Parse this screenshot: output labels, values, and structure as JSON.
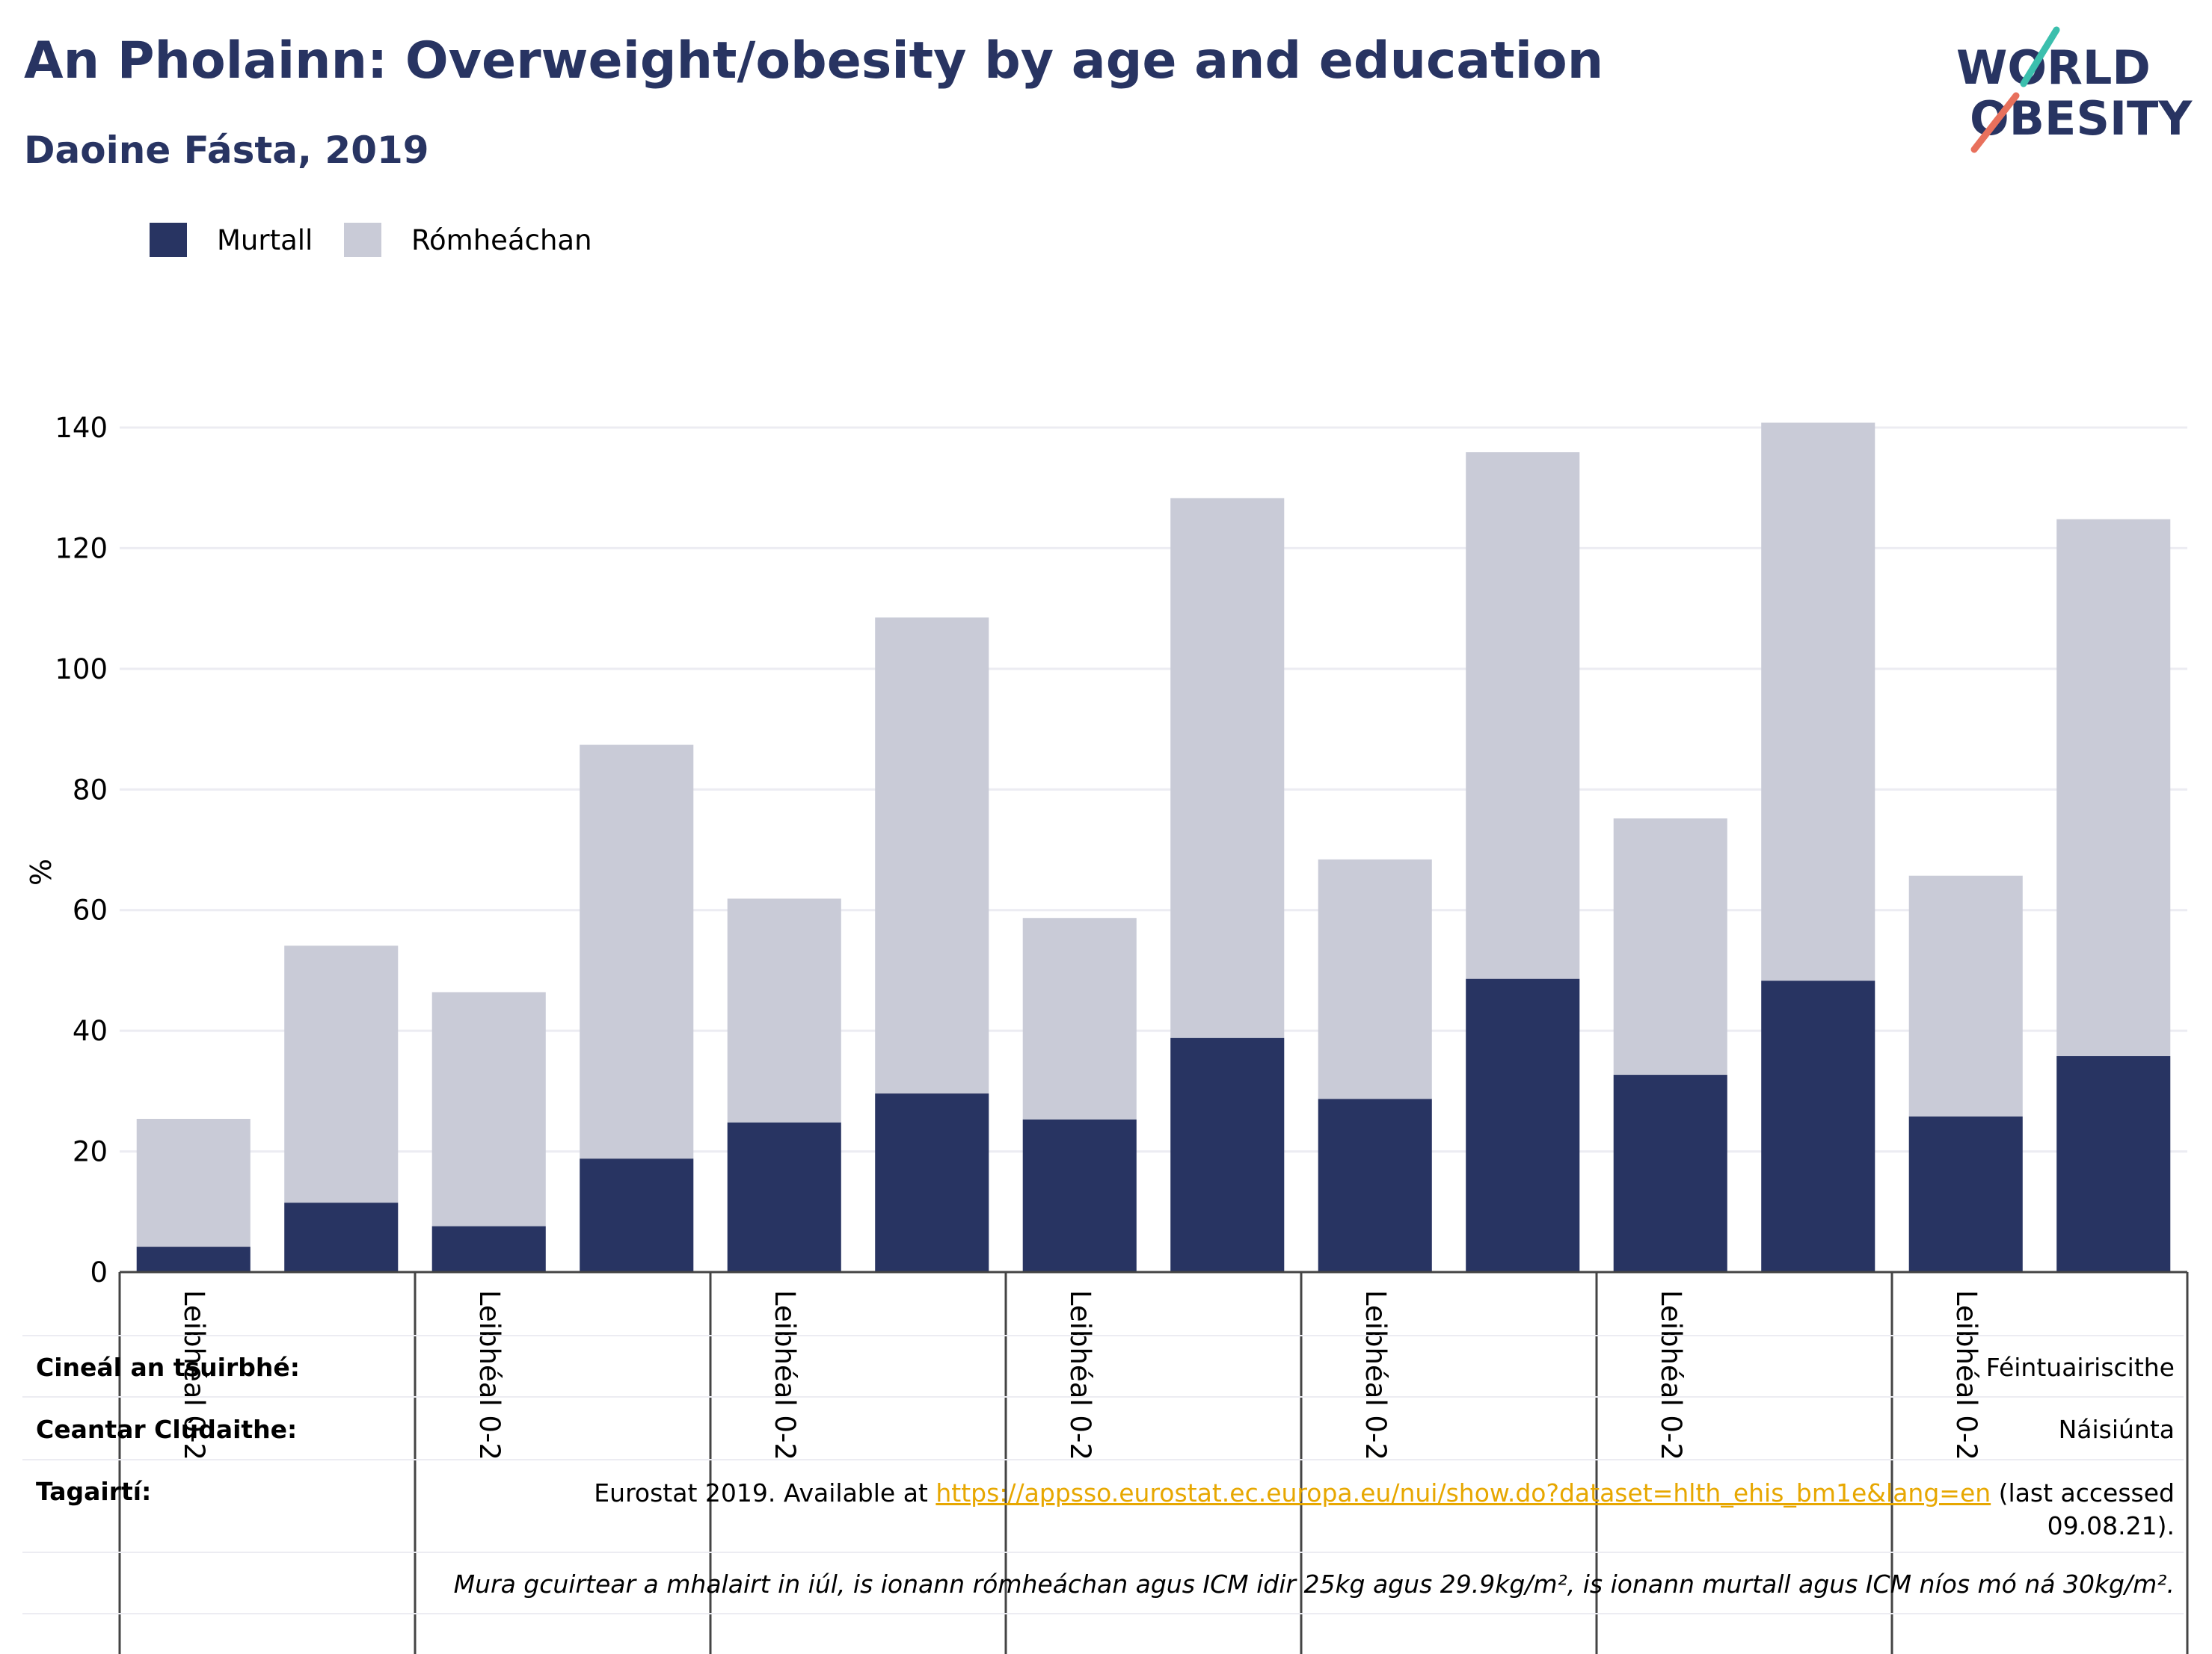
{
  "header": {
    "title": "An Pholainn: Overweight/obesity by age and education",
    "subtitle": "Daoine Fásta, 2019"
  },
  "logo": {
    "line1": "WORLD",
    "line2": "OBESITY"
  },
  "colors": {
    "obese": "#283462",
    "overweight": "#c9cbd7",
    "title": "#283462",
    "link": "#e7a700"
  },
  "legend": [
    {
      "label": "Murtall",
      "color": "#283462"
    },
    {
      "label": "Rómheáchan",
      "color": "#c9cbd7"
    }
  ],
  "chart_data": {
    "type": "bar",
    "stacked": true,
    "ylabel": "%",
    "ylim": [
      0,
      140
    ],
    "yticks": [
      0,
      20,
      40,
      60,
      80,
      100,
      120,
      140
    ],
    "grid": true,
    "legend_position": "top-left",
    "categories": [
      "Leibhéal 0-2",
      "",
      "Leibhéal 0-2",
      "",
      "Leibhéal 0-2",
      "",
      "Leibhéal 0-2",
      "",
      "Leibhéal 0-2",
      "",
      "Leibhéal 0-2",
      "",
      "Leibhéal 0-2",
      ""
    ],
    "series": [
      {
        "name": "Murtall",
        "values": [
          4.2,
          11.5,
          7.6,
          18.8,
          24.8,
          29.6,
          25.3,
          38.8,
          28.7,
          48.6,
          32.7,
          48.3,
          25.8,
          35.8
        ]
      },
      {
        "name": "Rómheáchan",
        "values": [
          21.2,
          42.6,
          38.8,
          68.6,
          37.1,
          78.9,
          33.4,
          89.5,
          39.7,
          87.3,
          42.5,
          92.5,
          39.9,
          89.0
        ]
      }
    ]
  },
  "info": {
    "survey_label": "Cineál an tsuirbhé:",
    "survey_value": "Féintuairiscithe",
    "coverage_label": "Ceantar Clúdaithe:",
    "coverage_value": "Náisiúnta",
    "refs_label": "Tagairtí:",
    "refs_pre": "Eurostat 2019. Available at ",
    "refs_link": "https://appsso.eurostat.ec.europa.eu/nui/show.do?dataset=hlth_ehis_bm1e&lang=en",
    "refs_post": " (last accessed 09.08.21).",
    "note": "Mura gcuirtear a mhalairt in iúl, is ionann rómheáchan agus ICM idir 25kg agus 29.9kg/m², is ionann murtall agus ICM níos mó ná 30kg/m²."
  }
}
